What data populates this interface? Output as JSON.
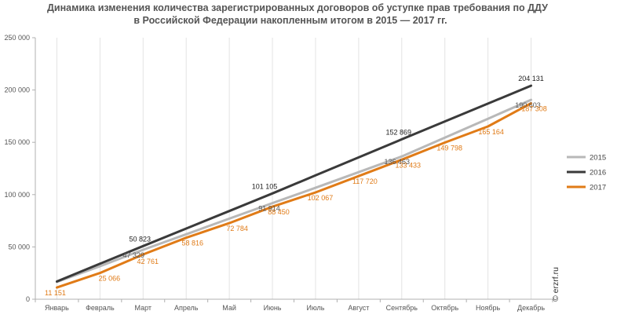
{
  "chart_data": {
    "type": "line",
    "title_line1": "Динамика изменения количества зарегистрированных договоров об уступке прав требования по ДДУ",
    "title_line2": "в Российской Федерации накопленным итогом в 2015 — 2017 гг.",
    "categories": [
      "Январь",
      "Февраль",
      "Март",
      "Апрель",
      "Май",
      "Июнь",
      "Июль",
      "Август",
      "Сентябрь",
      "Октябрь",
      "Ноябрь",
      "Декабрь"
    ],
    "ylim": [
      0,
      250000
    ],
    "yticks": [
      0,
      50000,
      100000,
      150000,
      200000,
      250000
    ],
    "ytick_labels": [
      "0",
      "50 000",
      "100 000",
      "150 000",
      "200 000",
      "250 000"
    ],
    "grid": "vertical",
    "legend_position": "right",
    "series": [
      {
        "name": "2015",
        "color": "#b8b8b8",
        "text_color": "#555555",
        "values": [
          16500,
          31500,
          47329,
          62100,
          77000,
          91914,
          106500,
          121500,
          136463,
          154500,
          172500,
          190603
        ],
        "data_labels": [
          null,
          null,
          "47 329",
          null,
          null,
          "91 914",
          null,
          null,
          "136 463",
          null,
          null,
          "190 603"
        ]
      },
      {
        "name": "2016",
        "color": "#3a3a3a",
        "text_color": "#222222",
        "values": [
          17000,
          33900,
          50823,
          67600,
          84300,
          101105,
          118400,
          135600,
          152869,
          170000,
          187000,
          204131
        ],
        "data_labels": [
          null,
          null,
          "50 823",
          null,
          null,
          "101 105",
          null,
          null,
          "152 869",
          null,
          null,
          "204 131"
        ]
      },
      {
        "name": "2017",
        "color": "#e07b17",
        "text_color": "#e07b17",
        "values": [
          11151,
          25066,
          42761,
          58816,
          72784,
          88450,
          102067,
          117720,
          133433,
          149798,
          165164,
          187308
        ],
        "data_labels": [
          "11 151",
          "25 066",
          "42 761",
          "58 816",
          "72 784",
          "88 450",
          "102 067",
          "117 720",
          "133 433",
          "149 798",
          "165 164",
          "187 308"
        ]
      }
    ]
  },
  "watermark": "© erzrf.ru"
}
